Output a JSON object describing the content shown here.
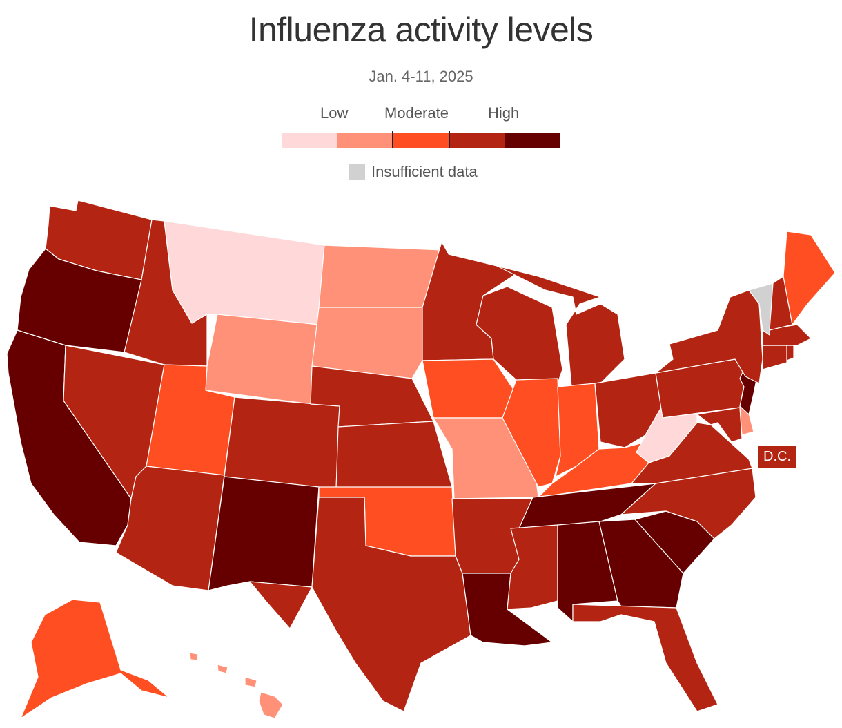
{
  "title": "Influenza activity levels",
  "subtitle": "Jan. 4-11, 2025",
  "legend": {
    "labels": [
      "Low",
      "Moderate",
      "High"
    ],
    "colors": [
      "#ffd9d9",
      "#ff9178",
      "#ff4f22",
      "#b32512",
      "#660000"
    ],
    "insufficient_label": "Insufficient data",
    "insufficient_color": "#d1d1d1"
  },
  "dc_label": "D.C.",
  "levels": {
    "WA": 3,
    "OR": 4,
    "CA": 4,
    "NV": 3,
    "ID": 3,
    "MT": 0,
    "WY": 1,
    "UT": 2,
    "AZ": 3,
    "CO": 3,
    "NM": 4,
    "ND": 1,
    "SD": 1,
    "NE": 3,
    "KS": 3,
    "OK": 2,
    "TX": 3,
    "MN": 3,
    "IA": 2,
    "MO": 1,
    "AR": 3,
    "LA": 4,
    "WI": 3,
    "IL": 2,
    "MI": 3,
    "IN": 2,
    "OH": 3,
    "KY": 2,
    "TN": 4,
    "MS": 3,
    "AL": 4,
    "GA": 4,
    "FL": 3,
    "SC": 4,
    "NC": 3,
    "VA": 3,
    "WV": 0,
    "MD": 3,
    "DE": 1,
    "NJ": 4,
    "PA": 3,
    "NY": 3,
    "CT": 3,
    "RI": 3,
    "MA": 3,
    "VT": "insufficient",
    "NH": 3,
    "ME": 2,
    "AK": 2,
    "HI": 1,
    "DC": 3
  }
}
